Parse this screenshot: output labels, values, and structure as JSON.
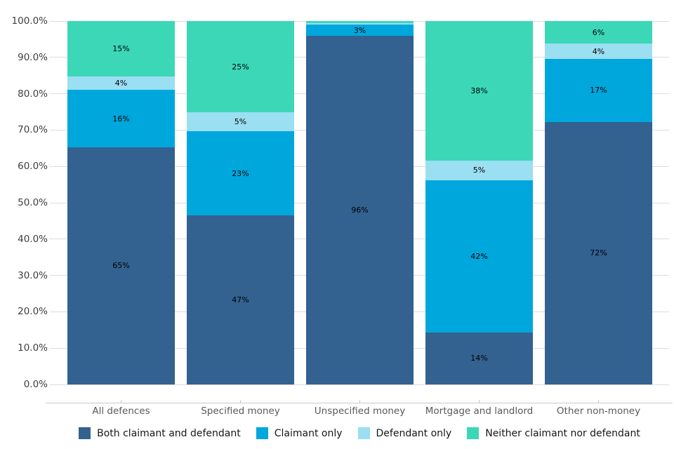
{
  "figure": {
    "title": "",
    "background_color": "#ffffff",
    "gridline_color": "#dcdcdc",
    "axis_line_color": "#c9c9c9",
    "ytick_text_color": "#3e3e3e",
    "category_text_color": "#58595b",
    "legend_text_color": "#161616",
    "data_label_color": "#000000"
  },
  "chart_data": {
    "type": "bar",
    "stacked": true,
    "orientation": "vertical",
    "title": "",
    "xlabel": "",
    "ylabel": "",
    "grid": true,
    "legend_position": "bottom",
    "categories": [
      "All defences",
      "Specified money",
      "Unspecified money",
      "Mortgage and landlord",
      "Other non-money"
    ],
    "series": [
      {
        "name": "Both claimant and defendant",
        "color": "#336190",
        "values": [
          65.3,
          46.5,
          95.9,
          14.3,
          72.3
        ],
        "labels": [
          "65%",
          "47%",
          "96%",
          "14%",
          "72%"
        ]
      },
      {
        "name": "Claimant only",
        "color": "#00a7dc",
        "values": [
          15.7,
          23.2,
          3.1,
          41.9,
          17.3
        ],
        "labels": [
          "16%",
          "23%",
          "3%",
          "42%",
          "17%"
        ]
      },
      {
        "name": "Defendant only",
        "color": "#9adff2",
        "values": [
          3.7,
          5.2,
          0.5,
          5.4,
          4.2
        ],
        "labels": [
          "4%",
          "5%",
          "",
          "5%",
          "4%"
        ]
      },
      {
        "name": "Neither claimant nor defendant",
        "color": "#3cd7b7",
        "values": [
          15.3,
          25.1,
          0.5,
          38.4,
          6.2
        ],
        "labels": [
          "15%",
          "25%",
          "",
          "38%",
          "6%"
        ]
      }
    ],
    "y_axis": {
      "min": 0,
      "max": 100,
      "tick_step": 10,
      "tick_labels": [
        "0.0%",
        "10.0%",
        "20.0%",
        "30.0%",
        "40.0%",
        "50.0%",
        "60.0%",
        "70.0%",
        "80.0%",
        "90.0%",
        "100.0%"
      ]
    }
  }
}
